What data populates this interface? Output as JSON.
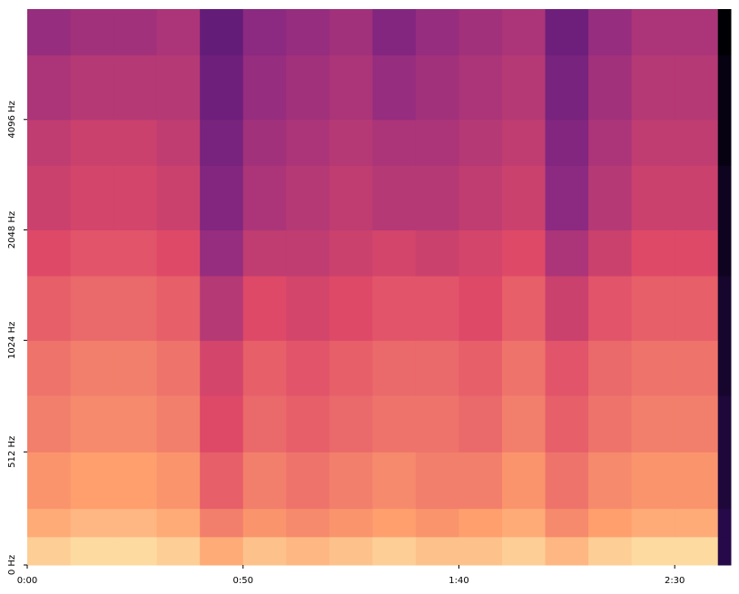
{
  "chart_data": {
    "type": "heatmap",
    "xbins": [
      0,
      10,
      20,
      30,
      40,
      50,
      60,
      70,
      80,
      90,
      100,
      110,
      120,
      130,
      140,
      150,
      160,
      163
    ],
    "ybins": [
      0,
      128,
      256,
      512,
      768,
      1024,
      1536,
      2048,
      3072,
      4096,
      6144,
      8192
    ],
    "values": [
      [
        -8,
        -6,
        -6,
        -8,
        -14,
        -10,
        -12,
        -10,
        -8,
        -10,
        -10,
        -8,
        -12,
        -8,
        -6,
        -6,
        -70
      ],
      [
        -14,
        -12,
        -12,
        -14,
        -22,
        -18,
        -20,
        -18,
        -16,
        -18,
        -16,
        -14,
        -20,
        -16,
        -14,
        -14,
        -70
      ],
      [
        -18,
        -16,
        -16,
        -18,
        -28,
        -22,
        -24,
        -22,
        -20,
        -22,
        -22,
        -18,
        -24,
        -20,
        -18,
        -18,
        -72
      ],
      [
        -22,
        -20,
        -20,
        -22,
        -32,
        -26,
        -28,
        -26,
        -24,
        -24,
        -26,
        -22,
        -28,
        -24,
        -22,
        -22,
        -72
      ],
      [
        -24,
        -22,
        -22,
        -24,
        -34,
        -28,
        -30,
        -28,
        -26,
        -26,
        -28,
        -24,
        -30,
        -26,
        -24,
        -24,
        -74
      ],
      [
        -28,
        -26,
        -26,
        -28,
        -40,
        -32,
        -34,
        -32,
        -30,
        -30,
        -32,
        -28,
        -36,
        -30,
        -28,
        -28,
        -74
      ],
      [
        -32,
        -30,
        -30,
        -32,
        -46,
        -38,
        -38,
        -36,
        -34,
        -36,
        -34,
        -32,
        -42,
        -36,
        -32,
        -32,
        -76
      ],
      [
        -36,
        -34,
        -34,
        -36,
        -50,
        -42,
        -40,
        -38,
        -40,
        -40,
        -38,
        -36,
        -48,
        -40,
        -36,
        -36,
        -76
      ],
      [
        -38,
        -36,
        -36,
        -38,
        -52,
        -44,
        -42,
        -40,
        -42,
        -42,
        -40,
        -38,
        -50,
        -42,
        -38,
        -38,
        -78
      ],
      [
        -42,
        -40,
        -40,
        -40,
        -54,
        -46,
        -44,
        -42,
        -46,
        -44,
        -42,
        -40,
        -52,
        -44,
        -40,
        -40,
        -78
      ],
      [
        -46,
        -44,
        -44,
        -42,
        -56,
        -48,
        -46,
        -44,
        -50,
        -46,
        -44,
        -42,
        -54,
        -46,
        -42,
        -42,
        -80
      ]
    ],
    "clim": [
      -80,
      0
    ],
    "colormap": [
      "#000004",
      "#3b0f70",
      "#8c2981",
      "#de4968",
      "#fe9f6d",
      "#fcfdbf"
    ],
    "xlim": [
      0,
      163
    ],
    "xticks": [
      {
        "value": 0,
        "label": "0:00"
      },
      {
        "value": 50,
        "label": "0:50"
      },
      {
        "value": 100,
        "label": "1:40"
      },
      {
        "value": 150,
        "label": "2:30"
      }
    ],
    "ylim": [
      0,
      8192
    ],
    "yscale": "mel",
    "yticks": [
      {
        "value": 0,
        "label": "0 Hz"
      },
      {
        "value": 512,
        "label": "512 Hz"
      },
      {
        "value": 1024,
        "label": "1024 Hz"
      },
      {
        "value": 2048,
        "label": "2048 Hz"
      },
      {
        "value": 4096,
        "label": "4096 Hz"
      }
    ]
  }
}
